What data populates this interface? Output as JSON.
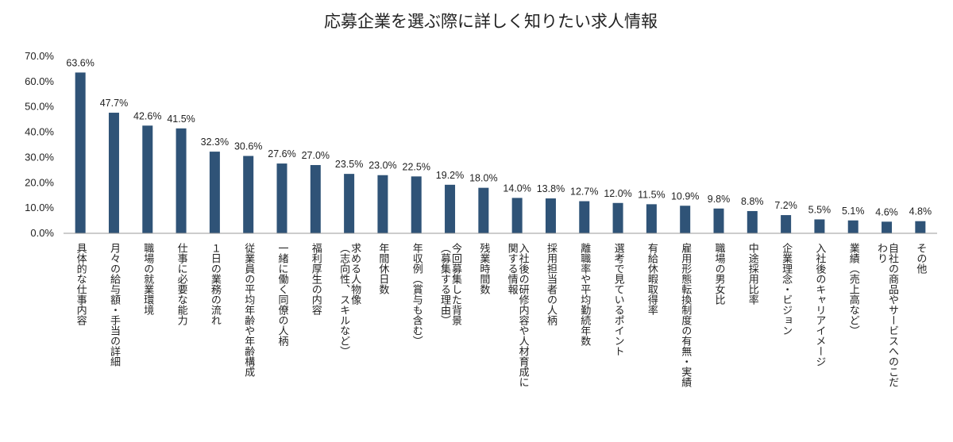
{
  "chart_data": {
    "type": "bar",
    "title": "応募企業を選ぶ際に詳しく知りたい求人情報",
    "xlabel": "",
    "ylabel": "",
    "ylim": [
      0,
      70
    ],
    "yticks": [
      "0.0%",
      "10.0%",
      "20.0%",
      "30.0%",
      "40.0%",
      "50.0%",
      "60.0%",
      "70.0%"
    ],
    "grid": false,
    "legend": "none",
    "bar_color": "#2f5377",
    "categories": [
      [
        "具体的な仕事内容"
      ],
      [
        "月々の給与額・手当の詳細"
      ],
      [
        "職場の就業環境"
      ],
      [
        "仕事に必要な能力"
      ],
      [
        "１日の業務の流れ"
      ],
      [
        "従業員の平均年齢や年齢構成"
      ],
      [
        "一緒に働く同僚の人柄"
      ],
      [
        "福利厚生の内容"
      ],
      [
        "求める人物像",
        "（志向性、スキルなど）"
      ],
      [
        "年間休日数"
      ],
      [
        "年収例（賞与も含む）"
      ],
      [
        "今回募集した背景",
        "（募集する理由）"
      ],
      [
        "残業時間数"
      ],
      [
        "入社後の研修内容や人材育成に",
        "関する情報"
      ],
      [
        "採用担当者の人柄"
      ],
      [
        "離職率や平均勤続年数"
      ],
      [
        "選考で見ているポイント"
      ],
      [
        "有給休暇取得率"
      ],
      [
        "雇用形態転換制度の有無・実績"
      ],
      [
        "職場の男女比"
      ],
      [
        "中途採用比率"
      ],
      [
        "企業理念・ビジョン"
      ],
      [
        "入社後のキャリアイメージ"
      ],
      [
        "業績（売上高など）"
      ],
      [
        "自社の商品やサービスへのこだ",
        "わり"
      ],
      [
        "その他"
      ]
    ],
    "values": [
      63.6,
      47.7,
      42.6,
      41.5,
      32.3,
      30.6,
      27.6,
      27.0,
      23.5,
      23.0,
      22.5,
      19.2,
      18.0,
      14.0,
      13.8,
      12.7,
      12.0,
      11.5,
      10.9,
      9.8,
      8.8,
      7.2,
      5.5,
      5.1,
      4.6,
      4.8
    ],
    "data_labels": [
      "63.6%",
      "47.7%",
      "42.6%",
      "41.5%",
      "32.3%",
      "30.6%",
      "27.6%",
      "27.0%",
      "23.5%",
      "23.0%",
      "22.5%",
      "19.2%",
      "18.0%",
      "14.0%",
      "13.8%",
      "12.7%",
      "12.0%",
      "11.5%",
      "10.9%",
      "9.8%",
      "8.8%",
      "7.2%",
      "5.5%",
      "5.1%",
      "4.6%",
      "4.8%"
    ]
  }
}
